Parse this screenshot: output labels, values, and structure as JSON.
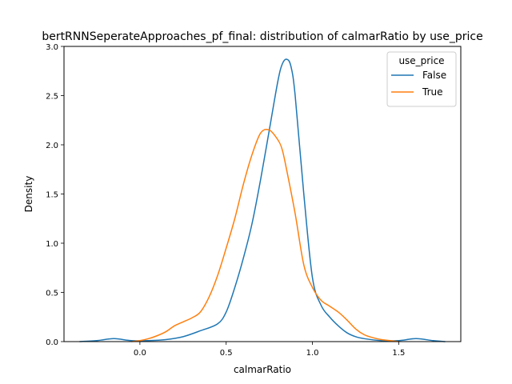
{
  "chart_data": {
    "type": "line",
    "title": "bertRNNSeperateApproaches_pf_final: distribution of calmarRatio by use_price",
    "xlabel": "calmarRatio",
    "ylabel": "Density",
    "xlim": [
      -0.44,
      1.86
    ],
    "ylim": [
      0,
      3.0
    ],
    "xticks": [
      0.0,
      0.5,
      1.0,
      1.5
    ],
    "xtick_labels": [
      "0.0",
      "0.5",
      "1.0",
      "1.5"
    ],
    "yticks": [
      0.0,
      0.5,
      1.0,
      1.5,
      2.0,
      2.5,
      3.0
    ],
    "ytick_labels": [
      "0.0",
      "0.5",
      "1.0",
      "1.5",
      "2.0",
      "2.5",
      "3.0"
    ],
    "grid": false,
    "legend": {
      "title": "use_price",
      "placement": "top-right"
    },
    "series": [
      {
        "name": "False",
        "color": "#1f77b4",
        "x": [
          -0.35,
          -0.25,
          -0.15,
          -0.05,
          0.05,
          0.15,
          0.25,
          0.35,
          0.45,
          0.5,
          0.55,
          0.6,
          0.65,
          0.7,
          0.75,
          0.8,
          0.825,
          0.85,
          0.875,
          0.9,
          0.95,
          1.0,
          1.05,
          1.1,
          1.15,
          1.2,
          1.25,
          1.3,
          1.4,
          1.5,
          1.6,
          1.7,
          1.77
        ],
        "y": [
          0.0,
          0.01,
          0.03,
          0.01,
          0.01,
          0.02,
          0.05,
          0.11,
          0.18,
          0.3,
          0.55,
          0.85,
          1.2,
          1.65,
          2.15,
          2.65,
          2.82,
          2.87,
          2.8,
          2.5,
          1.5,
          0.65,
          0.37,
          0.25,
          0.16,
          0.09,
          0.05,
          0.03,
          0.01,
          0.01,
          0.03,
          0.01,
          0.0
        ]
      },
      {
        "name": "True",
        "color": "#ff7f0e",
        "x": [
          -0.05,
          0.0,
          0.05,
          0.1,
          0.15,
          0.2,
          0.25,
          0.3,
          0.35,
          0.4,
          0.45,
          0.5,
          0.55,
          0.6,
          0.65,
          0.7,
          0.75,
          0.8,
          0.825,
          0.85,
          0.9,
          0.95,
          1.0,
          1.05,
          1.1,
          1.15,
          1.2,
          1.25,
          1.3,
          1.35,
          1.4,
          1.45,
          1.5
        ],
        "y": [
          0.0,
          0.01,
          0.03,
          0.06,
          0.1,
          0.16,
          0.2,
          0.24,
          0.3,
          0.45,
          0.67,
          0.95,
          1.25,
          1.6,
          1.9,
          2.12,
          2.15,
          2.05,
          1.95,
          1.75,
          1.3,
          0.78,
          0.55,
          0.42,
          0.36,
          0.3,
          0.22,
          0.13,
          0.07,
          0.04,
          0.02,
          0.01,
          0.0
        ]
      }
    ]
  }
}
